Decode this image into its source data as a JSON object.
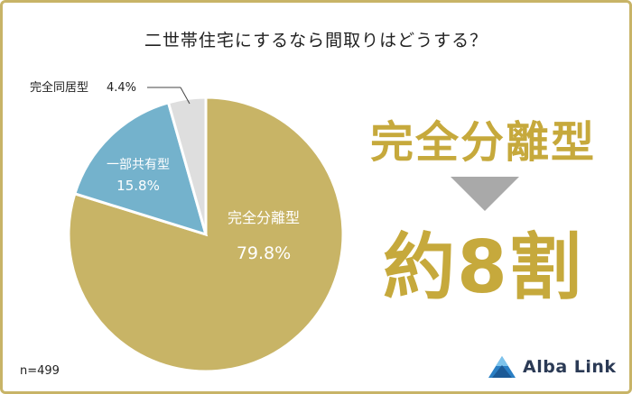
{
  "title": "二世帯住宅にするなら間取りはどうする？",
  "headline": "完全分離型",
  "big_number": "約8割",
  "footnote": "n=499",
  "brand": {
    "name": "Alba Link",
    "logo_icon": "triangle-mountain-icon",
    "color": "#2b3a55"
  },
  "chart_data": {
    "type": "pie",
    "slices": [
      {
        "name": "完全分離型",
        "value": 79.8,
        "label": "79.8%",
        "color": "#c8b466"
      },
      {
        "name": "一部共有型",
        "value": 15.8,
        "label": "15.8%",
        "color": "#74b2cc"
      },
      {
        "name": "完全同居型",
        "value": 4.4,
        "label": "4.4%",
        "color": "#dedede"
      }
    ]
  }
}
